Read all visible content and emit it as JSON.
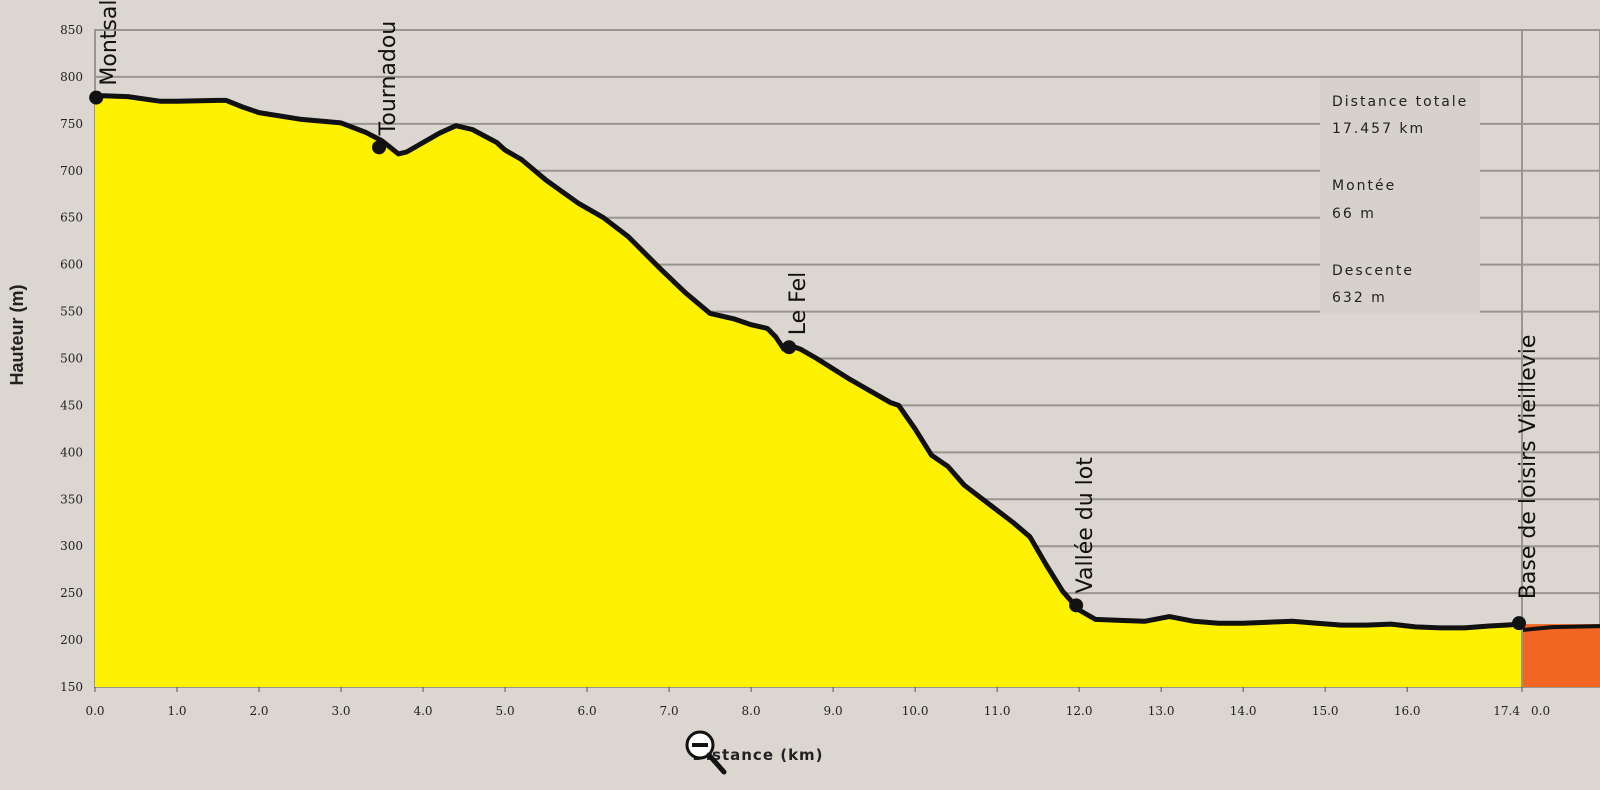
{
  "chart_data": {
    "type": "area",
    "title": "",
    "xlabel": "Distance (km)",
    "ylabel": "Hauteur (m)",
    "xlim": [
      0,
      17.4
    ],
    "ylim": [
      150,
      850
    ],
    "x_ticks": [
      "0.0",
      "1.0",
      "2.0",
      "3.0",
      "4.0",
      "5.0",
      "6.0",
      "7.0",
      "8.0",
      "9.0",
      "10.0",
      "11.0",
      "12.0",
      "13.0",
      "14.0",
      "15.0",
      "16.0",
      "17.4"
    ],
    "y_ticks": [
      "150",
      "200",
      "250",
      "300",
      "350",
      "400",
      "450",
      "500",
      "550",
      "600",
      "650",
      "700",
      "750",
      "800",
      "850"
    ],
    "grid": "horizontal",
    "fill_color": "#fff200",
    "line_color": "#111111",
    "next_segment_color": "#f26522",
    "next_segment_tick": "0.0",
    "series": [
      {
        "x": [
          0.0,
          0.1,
          0.4,
          0.8,
          1.0,
          1.5,
          1.6,
          1.8,
          2.0,
          2.5,
          3.0,
          3.3,
          3.5,
          3.6,
          3.7,
          3.8,
          4.2,
          4.4,
          4.6,
          4.9,
          5.0,
          5.2,
          5.5,
          5.9,
          6.2,
          6.5,
          6.9,
          7.2,
          7.5,
          7.8,
          8.0,
          8.2,
          8.3,
          8.4,
          8.5,
          8.6,
          8.8,
          9.2,
          9.5,
          9.7,
          9.8,
          10.0,
          10.2,
          10.4,
          10.6,
          10.9,
          11.2,
          11.4,
          11.6,
          11.8,
          12.0,
          12.2,
          12.5,
          12.8,
          13.1,
          13.4,
          13.7,
          14.0,
          14.3,
          14.6,
          14.9,
          15.2,
          15.5,
          15.8,
          16.1,
          16.4,
          16.7,
          17.0,
          17.2,
          17.4
        ],
        "y": [
          778,
          780,
          779,
          774,
          774,
          775,
          775,
          768,
          762,
          755,
          751,
          741,
          732,
          725,
          718,
          720,
          740,
          748,
          744,
          730,
          722,
          712,
          690,
          665,
          650,
          630,
          595,
          570,
          548,
          542,
          536,
          532,
          523,
          510,
          513,
          510,
          500,
          478,
          463,
          453,
          450,
          425,
          397,
          385,
          365,
          345,
          325,
          310,
          280,
          252,
          232,
          222,
          221,
          220,
          225,
          220,
          218,
          218,
          219,
          220,
          218,
          216,
          216,
          217,
          214,
          213,
          213,
          215,
          216,
          217
        ]
      }
    ],
    "waypoints": [
      {
        "name": "Montsalvy",
        "x": 0.1,
        "y": 778
      },
      {
        "name": "Tournadou",
        "x": 3.5,
        "y": 725
      },
      {
        "name": "Le Fel",
        "x": 8.5,
        "y": 512
      },
      {
        "name": "Vallée du lot",
        "x": 12.0,
        "y": 237
      },
      {
        "name": "Base de loisirs Vieillevie",
        "x": 17.4,
        "y": 218
      }
    ],
    "stats": [
      {
        "label": "Distance totale",
        "value": "17.457 km"
      },
      {
        "label": "Montée",
        "value": "66 m"
      },
      {
        "label": "Descente",
        "value": "632 m"
      }
    ]
  }
}
